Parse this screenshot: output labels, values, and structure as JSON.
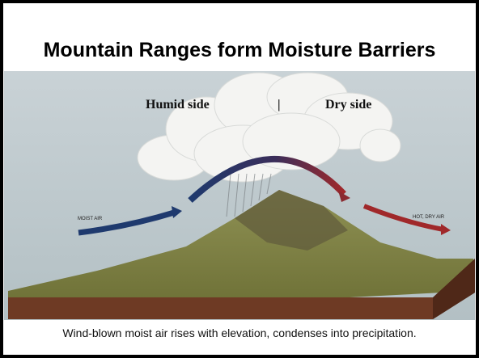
{
  "title": "Mountain Ranges form Moisture Barriers",
  "illustration": {
    "humid_label": "Humid side",
    "divider": "|",
    "dry_label": "Dry side",
    "moist_air_label": "MOIST AIR",
    "hot_dry_air_label": "HOT, DRY AIR"
  },
  "caption": "Wind-blown moist air rises with elevation, condenses into precipitation."
}
